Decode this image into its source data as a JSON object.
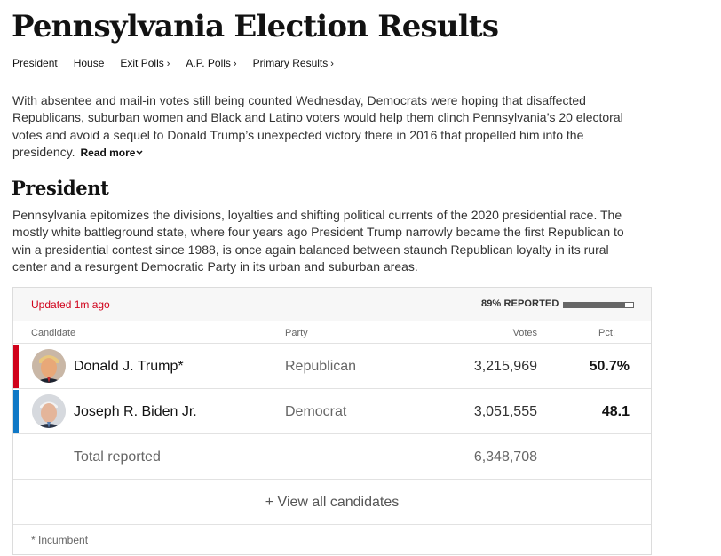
{
  "page": {
    "title": "Pennsylvania Election Results"
  },
  "nav": {
    "items": [
      {
        "label": "President",
        "chevron": ""
      },
      {
        "label": "House",
        "chevron": ""
      },
      {
        "label": "Exit Polls",
        "chevron": "›"
      },
      {
        "label": "A.P. Polls",
        "chevron": "›"
      },
      {
        "label": "Primary Results",
        "chevron": "›"
      }
    ]
  },
  "intro": {
    "text": "With absentee and mail-in votes still being counted Wednesday, Democrats were hoping that disaffected Republicans, suburban women and Black and Latino voters would help them clinch Pennsylvania’s 20 electoral votes and avoid a sequel to Donald Trump’s unexpected victory there in 2016 that propelled him into the presidency.",
    "read_more": "Read more"
  },
  "section": {
    "title": "President",
    "description": "Pennsylvania epitomizes the divisions, loyalties and shifting political currents of the 2020 presidential race. The mostly white battleground state, where four years ago President Trump narrowly became the first Republican to win a presidential contest since 1988, is once again balanced between staunch Republican loyalty in its rural center and a resurgent Democratic Party in its urban and suburban areas."
  },
  "results": {
    "updated": "Updated 1m ago",
    "reported_label": "89% REPORTED",
    "reported_fraction": 0.89,
    "columns": {
      "candidate": "Candidate",
      "party": "Party",
      "votes": "Votes",
      "pct": "Pct."
    },
    "candidates": [
      {
        "name": "Donald J. Trump*",
        "party": "Republican",
        "votes": "3,215,969",
        "pct": "50.7%",
        "color": "#d0021b"
      },
      {
        "name": "Joseph R. Biden Jr.",
        "party": "Democrat",
        "votes": "3,051,555",
        "pct": "48.1",
        "color": "#0f78c6"
      }
    ],
    "total_label": "Total reported",
    "total_votes": "6,348,708",
    "view_all": "+ View all candidates",
    "footnote": "* Incumbent"
  },
  "icons": {
    "chevron": "chevron-down-icon",
    "avatar_trump": "trump-portrait-icon",
    "avatar_biden": "biden-portrait-icon"
  }
}
